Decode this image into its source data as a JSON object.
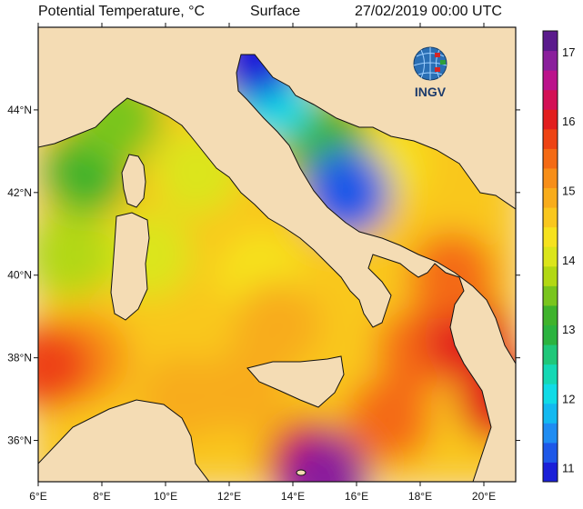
{
  "header": {
    "variable": "Potential Temperature, °C",
    "depth": "Surface",
    "datetime": "27/02/2019 00:00 UTC"
  },
  "logo": {
    "text": "INGV"
  },
  "map": {
    "lon_range": [
      6,
      21
    ],
    "lat_range": [
      35,
      46
    ],
    "lon_ticks": [
      {
        "value": 6,
        "label": "6°E"
      },
      {
        "value": 8,
        "label": "8°E"
      },
      {
        "value": 10,
        "label": "10°E"
      },
      {
        "value": 12,
        "label": "12°E"
      },
      {
        "value": 14,
        "label": "14°E"
      },
      {
        "value": 16,
        "label": "16°E"
      },
      {
        "value": 18,
        "label": "18°E"
      },
      {
        "value": 20,
        "label": "20°E"
      }
    ],
    "lat_ticks": [
      {
        "value": 36,
        "label": "36°N"
      },
      {
        "value": 38,
        "label": "38°N"
      },
      {
        "value": 40,
        "label": "40°N"
      },
      {
        "value": 42,
        "label": "42°N"
      },
      {
        "value": 44,
        "label": "44°N"
      }
    ],
    "land_color": "#f4dcb4",
    "coast_color": "#111111"
  },
  "colorbar": {
    "range": [
      10.8,
      17.3
    ],
    "tick_labels": [
      "11",
      "12",
      "13",
      "14",
      "15",
      "16",
      "17"
    ],
    "tick_values": [
      11,
      12,
      13,
      14,
      15,
      16,
      17
    ],
    "colors": [
      "#1a1fd8",
      "#1e58e8",
      "#1f8cf2",
      "#13b9f0",
      "#10dbe6",
      "#14d8b4",
      "#1fc779",
      "#2bb33f",
      "#3fb32c",
      "#79c51d",
      "#b2d813",
      "#dbe51a",
      "#f6e21e",
      "#f9c71e",
      "#f8ac1b",
      "#f78e18",
      "#f46a14",
      "#ee4313",
      "#e21e1e",
      "#d31055",
      "#bb128b",
      "#8a1f9c",
      "#5a1a8c"
    ]
  },
  "sea_patches": [
    {
      "lon": 9.5,
      "lat": 40.5,
      "temp": 14.0
    },
    {
      "lon": 13.0,
      "lat": 40.0,
      "temp": 14.2
    },
    {
      "lon": 11.0,
      "lat": 42.5,
      "temp": 14.0
    },
    {
      "lon": 7.5,
      "lat": 42.5,
      "temp": 13.2
    },
    {
      "lon": 8.5,
      "lat": 43.8,
      "temp": 13.6
    },
    {
      "lon": 7.0,
      "lat": 40.5,
      "temp": 13.8
    },
    {
      "lon": 7.5,
      "lat": 38.0,
      "temp": 15.3
    },
    {
      "lon": 6.3,
      "lat": 37.8,
      "temp": 15.8
    },
    {
      "lon": 10.5,
      "lat": 37.0,
      "temp": 15.0
    },
    {
      "lon": 12.5,
      "lat": 37.2,
      "temp": 15.0
    },
    {
      "lon": 13.5,
      "lat": 38.8,
      "temp": 14.8
    },
    {
      "lon": 14.5,
      "lat": 35.5,
      "temp": 16.0
    },
    {
      "lon": 15.0,
      "lat": 35.1,
      "temp": 17.0
    },
    {
      "lon": 17.0,
      "lat": 36.5,
      "temp": 15.6
    },
    {
      "lon": 18.0,
      "lat": 38.2,
      "temp": 15.5
    },
    {
      "lon": 19.5,
      "lat": 38.5,
      "temp": 16.0
    },
    {
      "lon": 20.5,
      "lat": 37.0,
      "temp": 15.9
    },
    {
      "lon": 19.0,
      "lat": 40.0,
      "temp": 15.5
    },
    {
      "lon": 18.2,
      "lat": 42.0,
      "temp": 14.7
    },
    {
      "lon": 16.8,
      "lat": 42.7,
      "temp": 14.3
    },
    {
      "lon": 15.0,
      "lat": 43.2,
      "temp": 13.2
    },
    {
      "lon": 13.3,
      "lat": 44.3,
      "temp": 12.0
    },
    {
      "lon": 12.8,
      "lat": 45.3,
      "temp": 11.0
    },
    {
      "lon": 15.7,
      "lat": 42.0,
      "temp": 11.2
    }
  ]
}
